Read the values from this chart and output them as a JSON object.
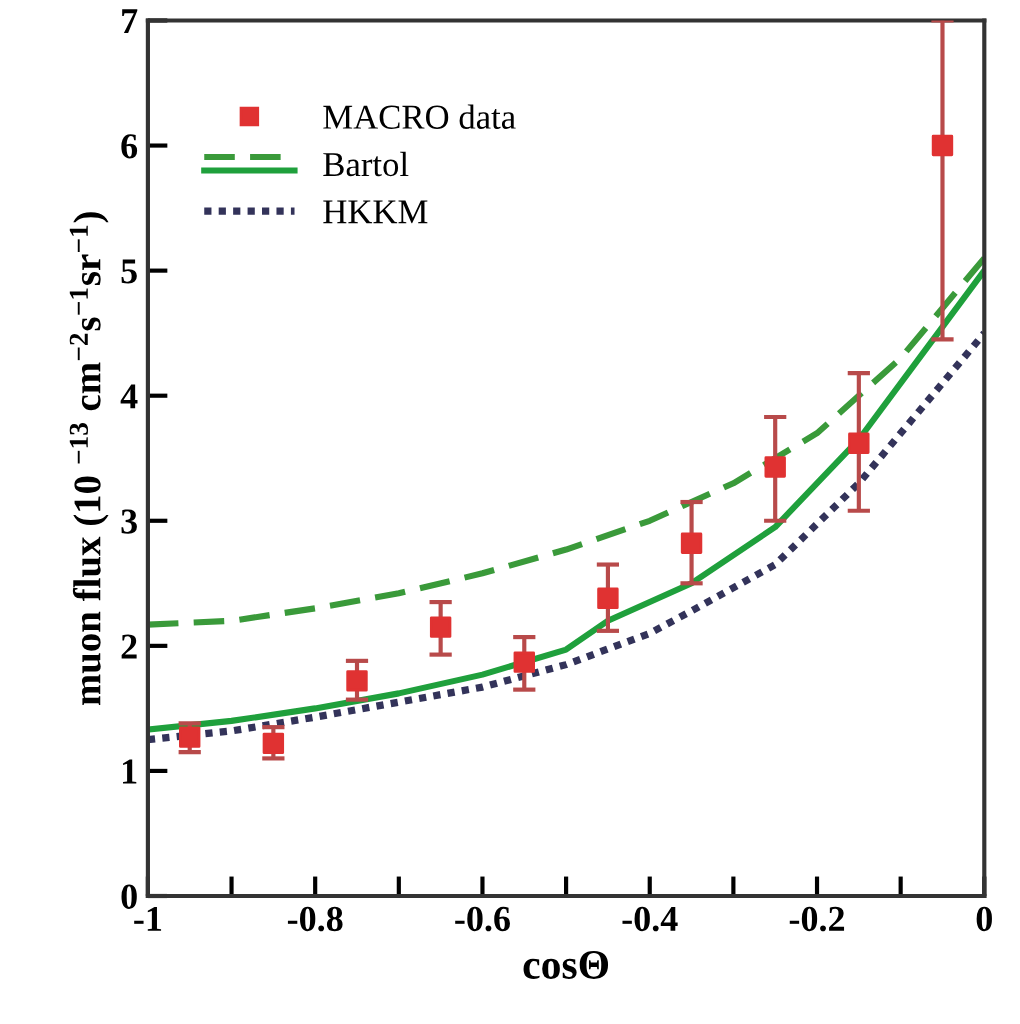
{
  "chart_data": {
    "type": "line",
    "xlabel": "cosΘ",
    "ylabel": "muon flux (10 $^{−13}$ cm$^{−2}$s$^{−1}$sr$^{−1}$)",
    "xlim": [
      -1,
      0
    ],
    "xticks": [
      -1,
      -0.8,
      -0.6,
      -0.4,
      -0.2,
      0
    ],
    "ylim": [
      0,
      7
    ],
    "yticks": [
      0,
      1,
      2,
      3,
      4,
      5,
      6,
      7
    ],
    "grid": false,
    "legend": "top left",
    "series": [
      {
        "name": "MACRO data",
        "type": "scatter",
        "marker": "square",
        "color": "#e03232",
        "x": [
          -0.95,
          -0.85,
          -0.75,
          -0.65,
          -0.55,
          -0.45,
          -0.35,
          -0.25,
          -0.15,
          -0.05
        ],
        "values": [
          1.27,
          1.22,
          1.72,
          2.15,
          1.87,
          2.38,
          2.82,
          3.43,
          3.62,
          6.0
        ],
        "errors": [
          [
            1.15,
            1.38
          ],
          [
            1.1,
            1.35
          ],
          [
            1.57,
            1.88
          ],
          [
            1.93,
            2.35
          ],
          [
            1.65,
            2.07
          ],
          [
            2.12,
            2.65
          ],
          [
            2.5,
            3.15
          ],
          [
            3.0,
            3.83
          ],
          [
            3.08,
            4.18
          ],
          [
            4.45,
            7.0
          ]
        ]
      },
      {
        "name": "Bartol",
        "line_style": "dashed",
        "color": "#3a9a3a",
        "x": [
          -1,
          -0.9,
          -0.8,
          -0.7,
          -0.6,
          -0.5,
          -0.4,
          -0.3,
          -0.2,
          -0.1,
          0
        ],
        "values": [
          2.17,
          2.2,
          2.3,
          2.42,
          2.58,
          2.77,
          3.0,
          3.3,
          3.7,
          4.3,
          5.1
        ]
      },
      {
        "line_style": "solid",
        "color": "#1fa03c",
        "x": [
          -1,
          -0.9,
          -0.8,
          -0.7,
          -0.6,
          -0.5,
          -0.45,
          -0.35,
          -0.25,
          -0.15,
          -0.05,
          0
        ],
        "values": [
          1.33,
          1.4,
          1.5,
          1.62,
          1.77,
          1.97,
          2.2,
          2.5,
          2.95,
          3.65,
          4.55,
          5.0
        ]
      },
      {
        "name": "HKKM",
        "line_style": "dotted",
        "color": "#33335a",
        "x": [
          -1,
          -0.9,
          -0.8,
          -0.7,
          -0.6,
          -0.5,
          -0.4,
          -0.35,
          -0.25,
          -0.15,
          -0.05,
          0
        ],
        "values": [
          1.25,
          1.32,
          1.43,
          1.55,
          1.67,
          1.85,
          2.1,
          2.28,
          2.65,
          3.3,
          4.1,
          4.5
        ]
      }
    ]
  }
}
